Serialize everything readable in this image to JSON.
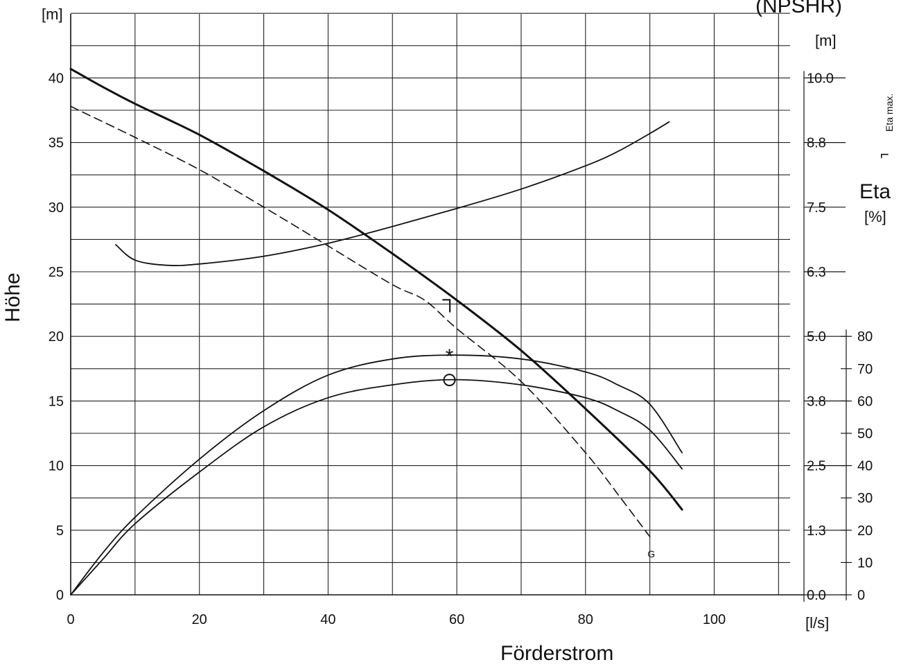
{
  "chart_data": {
    "type": "line",
    "title": "",
    "top_right_label": "(NPSHR)",
    "xlabel": "Förderstrom",
    "x_unit": "[l/s]",
    "xlim": [
      0,
      112
    ],
    "x_ticks": [
      0,
      20,
      40,
      60,
      80,
      100
    ],
    "ylabel": "Höhe",
    "y_unit": "[m]",
    "ylim": [
      0,
      45
    ],
    "y_ticks": [
      0,
      5,
      10,
      15,
      20,
      25,
      30,
      35,
      40
    ],
    "npshr_axis": {
      "unit": "[m]",
      "ticks": [
        "0.0",
        "1.3",
        "2.5",
        "3.8",
        "5.0",
        "6.3",
        "7.5",
        "8.8",
        "10.0"
      ],
      "tick_head_values": [
        0,
        5,
        10,
        15,
        20,
        25,
        30,
        35,
        40
      ]
    },
    "eta_axis": {
      "label": "Eta",
      "unit": "[%]",
      "ticks": [
        0,
        10,
        20,
        30,
        40,
        50,
        60,
        70,
        80
      ],
      "head_per_percent": 0.25
    },
    "eta_max_label": "Eta max.",
    "eta_max_symbol": "⌐",
    "grid": true,
    "series": [
      {
        "axis": "left",
        "style": "thick",
        "points": [
          [
            0,
            40.7
          ],
          [
            5,
            39.3
          ],
          [
            10,
            38.0
          ],
          [
            20,
            35.6
          ],
          [
            30,
            32.8
          ],
          [
            40,
            29.8
          ],
          [
            50,
            26.4
          ],
          [
            60,
            22.8
          ],
          [
            70,
            18.9
          ],
          [
            80,
            14.4
          ],
          [
            90,
            9.6
          ],
          [
            95,
            6.6
          ]
        ]
      },
      {
        "axis": "left",
        "style": "dashed",
        "points": [
          [
            0,
            37.8
          ],
          [
            10,
            35.4
          ],
          [
            20,
            32.9
          ],
          [
            30,
            30.0
          ],
          [
            40,
            27.0
          ],
          [
            50,
            24.0
          ],
          [
            55,
            22.8
          ],
          [
            60,
            20.6
          ],
          [
            70,
            16.5
          ],
          [
            80,
            11.0
          ],
          [
            85,
            7.8
          ],
          [
            90,
            4.5
          ]
        ],
        "end_label": "G"
      },
      {
        "axis": "left",
        "style": "thin",
        "points": [
          [
            7,
            27.1
          ],
          [
            10,
            25.9
          ],
          [
            15,
            25.5
          ],
          [
            20,
            25.6
          ],
          [
            30,
            26.2
          ],
          [
            40,
            27.2
          ],
          [
            50,
            28.5
          ],
          [
            60,
            29.9
          ],
          [
            70,
            31.4
          ],
          [
            80,
            33.2
          ],
          [
            85,
            34.3
          ],
          [
            90,
            35.7
          ],
          [
            93,
            36.6
          ]
        ]
      },
      {
        "axis": "eta",
        "style": "thin",
        "marker": "*",
        "marker_point": [
          59.5,
          74.0
        ],
        "points": [
          [
            0,
            0
          ],
          [
            5,
            13
          ],
          [
            10,
            24
          ],
          [
            20,
            42
          ],
          [
            30,
            57
          ],
          [
            40,
            68
          ],
          [
            50,
            73
          ],
          [
            59.5,
            74.2
          ],
          [
            70,
            73
          ],
          [
            80,
            69
          ],
          [
            85,
            65
          ],
          [
            90,
            59
          ],
          [
            95,
            44
          ]
        ]
      },
      {
        "axis": "eta",
        "style": "thin",
        "marker": "○",
        "marker_point": [
          59.5,
          66.5
        ],
        "points": [
          [
            0,
            0
          ],
          [
            5,
            11
          ],
          [
            10,
            22
          ],
          [
            20,
            38
          ],
          [
            30,
            52
          ],
          [
            40,
            61
          ],
          [
            50,
            65
          ],
          [
            59.5,
            66.6
          ],
          [
            70,
            65
          ],
          [
            80,
            61
          ],
          [
            85,
            57
          ],
          [
            90,
            51
          ],
          [
            95,
            39
          ]
        ]
      }
    ],
    "annotations": [
      {
        "text": "┐",
        "x": 59.5,
        "y": 23.0
      }
    ]
  }
}
